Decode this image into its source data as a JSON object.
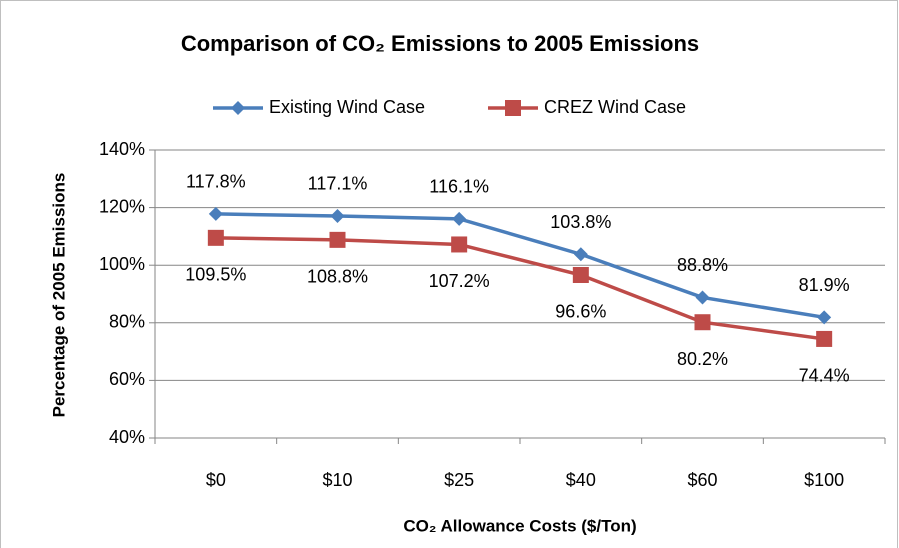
{
  "chart_data": {
    "type": "line",
    "title": "Comparison of CO₂ Emissions to 2005 Emissions",
    "xlabel": "CO₂ Allowance Costs ($/Ton)",
    "ylabel": "Percentage of 2005 Emissions",
    "categories": [
      "$0",
      "$10",
      "$25",
      "$40",
      "$60",
      "$100"
    ],
    "series": [
      {
        "name": "Existing Wind Case",
        "color": "#4a7ebb",
        "marker": "diamond",
        "values": [
          117.8,
          117.1,
          116.1,
          103.8,
          88.8,
          81.9
        ],
        "value_labels": [
          "117.8%",
          "117.1%",
          "116.1%",
          "103.8%",
          "88.8%",
          "81.9%"
        ]
      },
      {
        "name": "CREZ Wind Case",
        "color": "#be4b48",
        "marker": "square",
        "values": [
          109.5,
          108.8,
          107.2,
          96.6,
          80.2,
          74.4
        ],
        "value_labels": [
          "109.5%",
          "108.8%",
          "107.2%",
          "96.6%",
          "80.2%",
          "74.4%"
        ]
      }
    ],
    "ylim": [
      40,
      140
    ],
    "yticks": [
      {
        "value": 40,
        "label": "40%"
      },
      {
        "value": 60,
        "label": "60%"
      },
      {
        "value": 80,
        "label": "80%"
      },
      {
        "value": 100,
        "label": "100%"
      },
      {
        "value": 120,
        "label": "120%"
      },
      {
        "value": 140,
        "label": "140%"
      }
    ],
    "grid": true,
    "legend": "top"
  }
}
